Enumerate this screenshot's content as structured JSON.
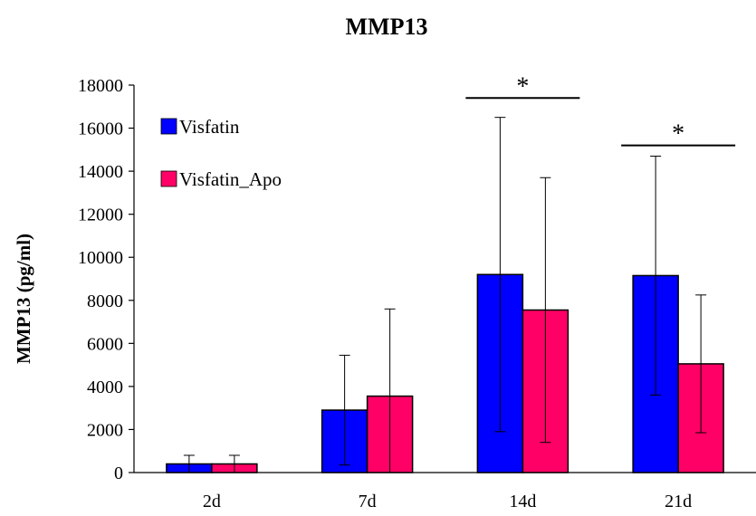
{
  "chart_data": {
    "type": "bar",
    "title": "MMP13",
    "xlabel": "",
    "ylabel": "MMP13  (pg/ml)",
    "categories": [
      "2d",
      "7d",
      "14d",
      "21d"
    ],
    "ylim": [
      0,
      18000
    ],
    "yticks": [
      0,
      2000,
      4000,
      6000,
      8000,
      10000,
      12000,
      14000,
      16000,
      18000
    ],
    "grid": false,
    "legend_position": "top-left",
    "series": [
      {
        "name": "Visfatin",
        "color": "#0000ff",
        "values": [
          400,
          2900,
          9200,
          9150
        ],
        "errors": [
          400,
          2550,
          7300,
          5550
        ]
      },
      {
        "name": "Visfatin_Apo",
        "color": "#ff0066",
        "values": [
          400,
          3550,
          7550,
          5050
        ],
        "errors": [
          400,
          4050,
          6150,
          3200
        ]
      }
    ],
    "annotations": [
      {
        "text": "*",
        "category": "14d",
        "level": 17400
      },
      {
        "text": "*",
        "category": "21d",
        "level": 15200
      }
    ]
  }
}
